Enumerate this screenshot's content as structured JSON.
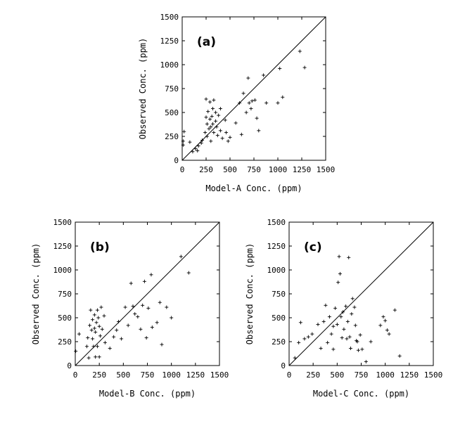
{
  "chart_data": [
    {
      "type": "scatter",
      "panel_label": "(a)",
      "xlabel": "Model-A Conc. (ppm)",
      "ylabel": "Observed Conc. (ppm)",
      "xlim": [
        0,
        1500
      ],
      "ylim": [
        0,
        1500
      ],
      "xticks": [
        "0",
        "250",
        "500",
        "750",
        "1000",
        "1250",
        "1500"
      ],
      "yticks": [
        "0",
        "250",
        "500",
        "750",
        "1000",
        "1250",
        "1500"
      ],
      "reference_line": "1:1",
      "marker": "+",
      "points": [
        [
          10,
          160
        ],
        [
          10,
          200
        ],
        [
          20,
          300
        ],
        [
          80,
          190
        ],
        [
          110,
          90
        ],
        [
          140,
          120
        ],
        [
          160,
          100
        ],
        [
          170,
          150
        ],
        [
          200,
          180
        ],
        [
          210,
          210
        ],
        [
          240,
          290
        ],
        [
          250,
          450
        ],
        [
          250,
          640
        ],
        [
          260,
          250
        ],
        [
          260,
          380
        ],
        [
          270,
          510
        ],
        [
          280,
          330
        ],
        [
          290,
          430
        ],
        [
          290,
          610
        ],
        [
          300,
          350
        ],
        [
          300,
          200
        ],
        [
          310,
          460
        ],
        [
          320,
          380
        ],
        [
          320,
          540
        ],
        [
          330,
          290
        ],
        [
          330,
          630
        ],
        [
          350,
          410
        ],
        [
          350,
          500
        ],
        [
          360,
          350
        ],
        [
          370,
          260
        ],
        [
          380,
          470
        ],
        [
          400,
          310
        ],
        [
          400,
          540
        ],
        [
          420,
          230
        ],
        [
          450,
          420
        ],
        [
          460,
          290
        ],
        [
          480,
          200
        ],
        [
          500,
          240
        ],
        [
          560,
          390
        ],
        [
          600,
          600
        ],
        [
          620,
          270
        ],
        [
          640,
          700
        ],
        [
          670,
          500
        ],
        [
          690,
          860
        ],
        [
          700,
          600
        ],
        [
          720,
          540
        ],
        [
          730,
          620
        ],
        [
          760,
          630
        ],
        [
          780,
          440
        ],
        [
          800,
          310
        ],
        [
          850,
          890
        ],
        [
          880,
          600
        ],
        [
          1000,
          600
        ],
        [
          1020,
          960
        ],
        [
          1050,
          660
        ],
        [
          1230,
          1140
        ],
        [
          1280,
          970
        ]
      ]
    },
    {
      "type": "scatter",
      "panel_label": "(b)",
      "xlabel": "Model-B Conc. (ppm)",
      "ylabel": "Observed Conc. (ppm)",
      "xlim": [
        0,
        1500
      ],
      "ylim": [
        0,
        1500
      ],
      "xticks": [
        "0",
        "250",
        "500",
        "750",
        "1000",
        "1250",
        "1500"
      ],
      "yticks": [
        "0",
        "250",
        "500",
        "750",
        "1000",
        "1250",
        "1500"
      ],
      "reference_line": "1:1",
      "marker": "+",
      "points": [
        [
          5,
          150
        ],
        [
          40,
          330
        ],
        [
          120,
          200
        ],
        [
          130,
          290
        ],
        [
          140,
          80
        ],
        [
          150,
          420
        ],
        [
          160,
          580
        ],
        [
          170,
          370
        ],
        [
          180,
          480
        ],
        [
          180,
          280
        ],
        [
          190,
          200
        ],
        [
          200,
          530
        ],
        [
          200,
          390
        ],
        [
          210,
          350
        ],
        [
          210,
          90
        ],
        [
          220,
          450
        ],
        [
          230,
          580
        ],
        [
          230,
          200
        ],
        [
          240,
          500
        ],
        [
          250,
          410
        ],
        [
          250,
          90
        ],
        [
          260,
          310
        ],
        [
          270,
          610
        ],
        [
          280,
          380
        ],
        [
          300,
          520
        ],
        [
          310,
          240
        ],
        [
          360,
          180
        ],
        [
          400,
          300
        ],
        [
          430,
          370
        ],
        [
          450,
          460
        ],
        [
          480,
          280
        ],
        [
          520,
          610
        ],
        [
          550,
          420
        ],
        [
          580,
          860
        ],
        [
          600,
          620
        ],
        [
          620,
          540
        ],
        [
          650,
          510
        ],
        [
          680,
          380
        ],
        [
          700,
          630
        ],
        [
          720,
          880
        ],
        [
          740,
          290
        ],
        [
          760,
          600
        ],
        [
          790,
          950
        ],
        [
          800,
          400
        ],
        [
          850,
          450
        ],
        [
          880,
          660
        ],
        [
          900,
          220
        ],
        [
          950,
          610
        ],
        [
          1000,
          500
        ],
        [
          1100,
          1140
        ],
        [
          1180,
          970
        ]
      ]
    },
    {
      "type": "scatter",
      "panel_label": "(c)",
      "xlabel": "Model-C Conc. (ppm)",
      "ylabel": "Observed Conc. (ppm)",
      "xlim": [
        0,
        1500
      ],
      "ylim": [
        0,
        1500
      ],
      "xticks": [
        "0",
        "250",
        "500",
        "750",
        "1000",
        "1250",
        "1500"
      ],
      "yticks": [
        "0",
        "250",
        "500",
        "750",
        "1000",
        "1250",
        "1500"
      ],
      "reference_line": "1:1",
      "marker": "+",
      "points": [
        [
          60,
          80
        ],
        [
          100,
          240
        ],
        [
          120,
          450
        ],
        [
          160,
          280
        ],
        [
          200,
          300
        ],
        [
          240,
          330
        ],
        [
          300,
          430
        ],
        [
          330,
          180
        ],
        [
          360,
          460
        ],
        [
          380,
          630
        ],
        [
          400,
          240
        ],
        [
          420,
          510
        ],
        [
          440,
          330
        ],
        [
          460,
          410
        ],
        [
          460,
          170
        ],
        [
          480,
          600
        ],
        [
          500,
          430
        ],
        [
          510,
          870
        ],
        [
          520,
          1140
        ],
        [
          530,
          960
        ],
        [
          540,
          510
        ],
        [
          550,
          290
        ],
        [
          560,
          560
        ],
        [
          570,
          380
        ],
        [
          590,
          620
        ],
        [
          600,
          280
        ],
        [
          610,
          460
        ],
        [
          620,
          1130
        ],
        [
          630,
          300
        ],
        [
          640,
          180
        ],
        [
          650,
          540
        ],
        [
          660,
          700
        ],
        [
          680,
          610
        ],
        [
          690,
          420
        ],
        [
          700,
          260
        ],
        [
          710,
          250
        ],
        [
          720,
          160
        ],
        [
          740,
          320
        ],
        [
          760,
          170
        ],
        [
          800,
          40
        ],
        [
          850,
          250
        ],
        [
          950,
          420
        ],
        [
          980,
          510
        ],
        [
          1000,
          470
        ],
        [
          1020,
          370
        ],
        [
          1040,
          330
        ],
        [
          1100,
          580
        ],
        [
          1150,
          100
        ]
      ]
    }
  ]
}
